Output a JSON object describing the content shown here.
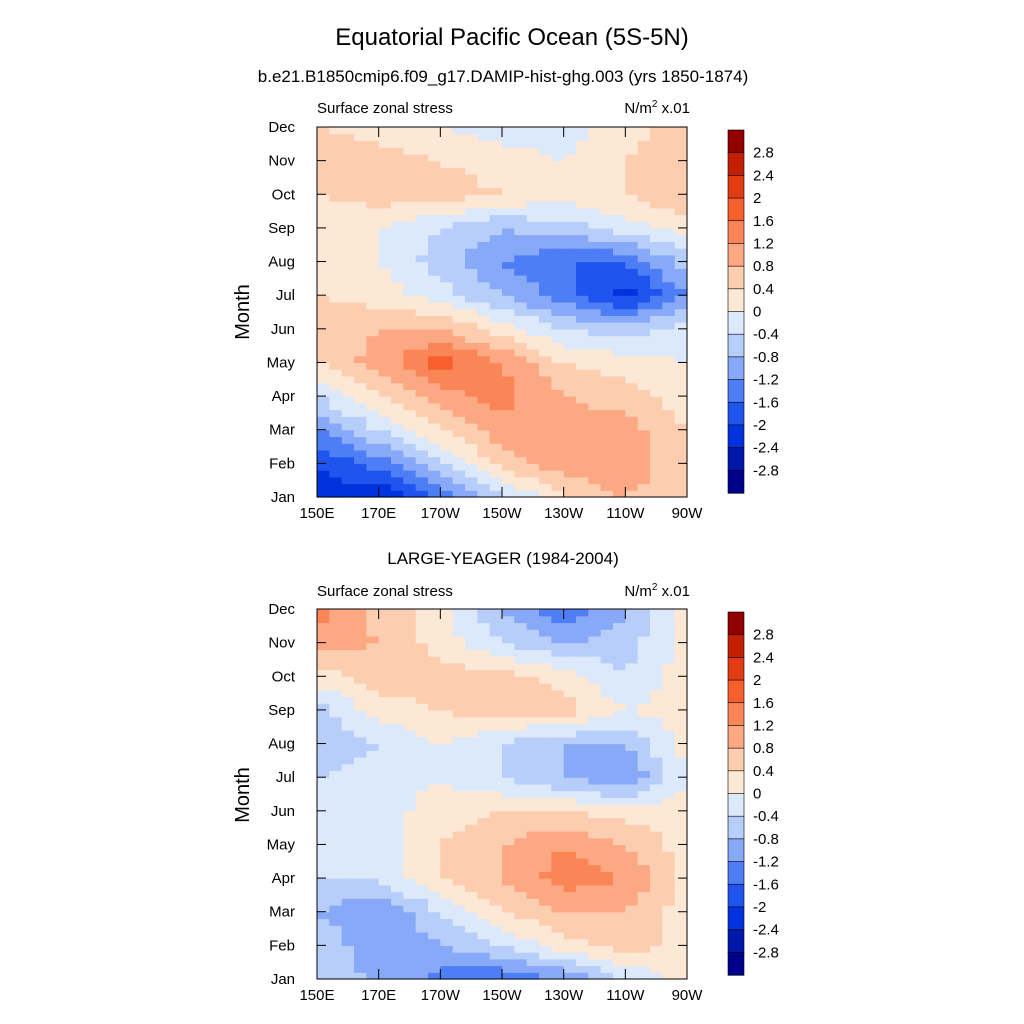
{
  "figure": {
    "title": "Equatorial Pacific Ocean (5S-5N)",
    "panel_titles": [
      "b.e21.B1850cmip6.f09_g17.DAMIP-hist-ghg.003 (yrs 1850-1874)",
      "LARGE-YEAGER (1984-2004)"
    ]
  },
  "chart_data": [
    {
      "type": "heatmap",
      "title": "b.e21.B1850cmip6.f09_g17.DAMIP-hist-ghg.003 (yrs 1850-1874)",
      "left_label": "Surface zonal stress",
      "units_label": "N/m",
      "units_sup": "2",
      "units_suffix": " x.01",
      "ylabel": "Month",
      "xlabel": "",
      "x": [
        150,
        170,
        190,
        210,
        230,
        250,
        270
      ],
      "x_ticks": [
        "150E",
        "170E",
        "170W",
        "150W",
        "130W",
        "110W",
        "90W"
      ],
      "y_ticks": [
        "Jan",
        "Feb",
        "Mar",
        "Apr",
        "May",
        "Jun",
        "Jul",
        "Aug",
        "Sep",
        "Oct",
        "Nov",
        "Dec"
      ],
      "values": [
        [
          -2.2,
          -2.4,
          -1.6,
          -0.6,
          0.4,
          0.8,
          0.4
        ],
        [
          -2.0,
          -1.4,
          -0.4,
          0.6,
          1.0,
          1.2,
          0.4
        ],
        [
          -1.2,
          -0.4,
          0.4,
          1.0,
          1.0,
          1.0,
          0.4
        ],
        [
          -0.4,
          0.4,
          1.0,
          1.4,
          0.8,
          0.6,
          0.2
        ],
        [
          0.4,
          1.0,
          1.8,
          1.2,
          0.4,
          0.2,
          0.0
        ],
        [
          0.6,
          0.8,
          0.8,
          0.2,
          -0.4,
          -0.6,
          -0.2
        ],
        [
          0.4,
          0.2,
          -0.2,
          -0.8,
          -1.4,
          -2.2,
          -1.2
        ],
        [
          0.2,
          0.0,
          -0.6,
          -1.2,
          -1.6,
          -1.6,
          -0.6
        ],
        [
          0.0,
          0.0,
          -0.4,
          -0.8,
          -0.6,
          -0.2,
          0.2
        ],
        [
          0.4,
          0.6,
          0.6,
          0.4,
          0.2,
          0.4,
          0.8
        ],
        [
          0.8,
          0.6,
          0.4,
          0.2,
          0.0,
          0.4,
          0.8
        ],
        [
          0.4,
          0.2,
          0.0,
          -0.2,
          -0.2,
          0.2,
          0.6
        ]
      ]
    },
    {
      "type": "heatmap",
      "title": "LARGE-YEAGER (1984-2004)",
      "left_label": "Surface zonal stress",
      "units_label": "N/m",
      "units_sup": "2",
      "units_suffix": " x.01",
      "ylabel": "Month",
      "xlabel": "",
      "x": [
        150,
        170,
        190,
        210,
        230,
        250,
        270
      ],
      "x_ticks": [
        "150E",
        "170E",
        "170W",
        "150W",
        "130W",
        "110W",
        "90W"
      ],
      "y_ticks": [
        "Jan",
        "Feb",
        "Mar",
        "Apr",
        "May",
        "Jun",
        "Jul",
        "Aug",
        "Sep",
        "Oct",
        "Nov",
        "Dec"
      ],
      "values": [
        [
          -0.6,
          -0.8,
          -1.4,
          -1.6,
          -1.2,
          -0.4,
          0.2
        ],
        [
          -0.4,
          -1.2,
          -0.8,
          -0.4,
          0.2,
          0.6,
          0.2
        ],
        [
          -0.8,
          -1.2,
          -0.4,
          0.4,
          0.8,
          0.8,
          0.2
        ],
        [
          -0.4,
          -0.4,
          0.4,
          0.8,
          1.4,
          1.2,
          0.2
        ],
        [
          -0.2,
          -0.2,
          0.4,
          0.8,
          1.2,
          0.8,
          0.2
        ],
        [
          -0.2,
          -0.2,
          0.2,
          0.4,
          0.4,
          0.2,
          0.2
        ],
        [
          -0.4,
          -0.2,
          0.0,
          -0.4,
          -0.8,
          -1.2,
          0.0
        ],
        [
          -0.8,
          -0.4,
          0.0,
          -0.4,
          -0.8,
          -0.8,
          0.2
        ],
        [
          -0.6,
          0.2,
          0.4,
          0.6,
          0.6,
          0.0,
          0.2
        ],
        [
          0.2,
          0.6,
          0.6,
          0.6,
          0.2,
          -0.4,
          0.2
        ],
        [
          1.0,
          0.8,
          0.2,
          -0.4,
          -0.8,
          -0.6,
          0.2
        ],
        [
          1.4,
          0.6,
          0.2,
          -0.8,
          -1.6,
          -0.8,
          0.2
        ]
      ]
    }
  ],
  "colorbar": {
    "labels": [
      "2.8",
      "2.4",
      "2",
      "1.6",
      "1.2",
      "0.8",
      "0.4",
      "0",
      "-0.4",
      "-0.8",
      "-1.2",
      "-1.6",
      "-2",
      "-2.4",
      "-2.8"
    ],
    "levels": [
      -3.2,
      -2.8,
      -2.4,
      -2.0,
      -1.6,
      -1.2,
      -0.8,
      -0.4,
      0.0,
      0.4,
      0.8,
      1.2,
      1.6,
      2.0,
      2.4,
      2.8,
      3.2
    ],
    "colors": [
      "#00008b",
      "#0018aa",
      "#0033dd",
      "#1f55ee",
      "#4d7ef5",
      "#87a9f8",
      "#b7cefa",
      "#dce9fb",
      "#fde8d6",
      "#fdcdb0",
      "#fca882",
      "#fa8658",
      "#f5602c",
      "#e23c12",
      "#c41f00",
      "#920000"
    ]
  }
}
